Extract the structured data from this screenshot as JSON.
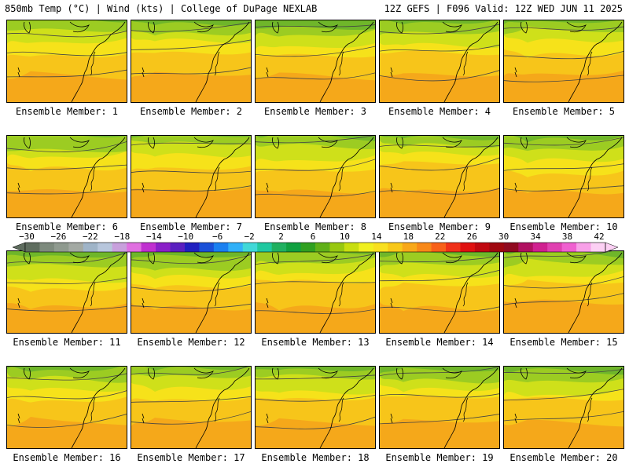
{
  "header": {
    "left": "850mb Temp (°C) | Wind (kts) | College of DuPage NEXLAB",
    "right": "12Z GEFS | F096 Valid: 12Z WED JUN 11 2025"
  },
  "panels": [
    {
      "label": "Ensemble Member: 1",
      "member": 1,
      "cool": 0.55
    },
    {
      "label": "Ensemble Member: 2",
      "member": 2,
      "cool": 0.65
    },
    {
      "label": "Ensemble Member: 3",
      "member": 3,
      "cool": 0.35
    },
    {
      "label": "Ensemble Member: 4",
      "member": 4,
      "cool": 0.45
    },
    {
      "label": "Ensemble Member: 5",
      "member": 5,
      "cool": 0.6
    },
    {
      "label": "Ensemble Member: 6",
      "member": 6,
      "cool": 0.6
    },
    {
      "label": "Ensemble Member: 7",
      "member": 7,
      "cool": 0.7
    },
    {
      "label": "Ensemble Member: 8",
      "member": 8,
      "cool": 0.45
    },
    {
      "label": "Ensemble Member: 9",
      "member": 9,
      "cool": 0.85
    },
    {
      "label": "Ensemble Member: 10",
      "member": 10,
      "cool": 0.35
    },
    {
      "label": "Ensemble Member: 11",
      "member": 11,
      "cool": 0.25
    },
    {
      "label": "Ensemble Member: 12",
      "member": 12,
      "cool": 0.35
    },
    {
      "label": "Ensemble Member: 13",
      "member": 13,
      "cool": 0.6
    },
    {
      "label": "Ensemble Member: 14",
      "member": 14,
      "cool": 0.45
    },
    {
      "label": "Ensemble Member: 15",
      "member": 15,
      "cool": 0.5
    },
    {
      "label": "Ensemble Member: 16",
      "member": 16,
      "cool": 0.6
    },
    {
      "label": "Ensemble Member: 17",
      "member": 17,
      "cool": 0.55
    },
    {
      "label": "Ensemble Member: 18",
      "member": 18,
      "cool": 0.5
    },
    {
      "label": "Ensemble Member: 19",
      "member": 19,
      "cool": 0.55
    },
    {
      "label": "Ensemble Member: 20",
      "member": 20,
      "cool": 0.3
    }
  ],
  "colorbar": {
    "ticks": [
      "−30",
      "−26",
      "−22",
      "−18",
      "−14",
      "−10",
      "−6",
      "−2",
      "2",
      "6",
      "10",
      "14",
      "18",
      "22",
      "26",
      "30",
      "34",
      "38",
      "42"
    ],
    "colors": [
      "#5f6d5f",
      "#7d8a7d",
      "#8f9a8f",
      "#a3a9a3",
      "#9fb4c8",
      "#b7c6dc",
      "#c8a0dc",
      "#e06fe0",
      "#c030d0",
      "#8a20c8",
      "#5a20c0",
      "#2020c0",
      "#1a50d8",
      "#1a80f0",
      "#30b0f8",
      "#40d8d8",
      "#20c8a0",
      "#20b060",
      "#10a040",
      "#30a020",
      "#60b018",
      "#98c810",
      "#c8de10",
      "#f0f020",
      "#f8e020",
      "#f8c818",
      "#f8a818",
      "#f88818",
      "#f86018",
      "#f03018",
      "#e01010",
      "#c00810",
      "#a00810",
      "#900a20",
      "#b01060",
      "#d02090",
      "#e040b0",
      "#f060d0",
      "#f8a0e8",
      "#fcd0f4"
    ]
  }
}
